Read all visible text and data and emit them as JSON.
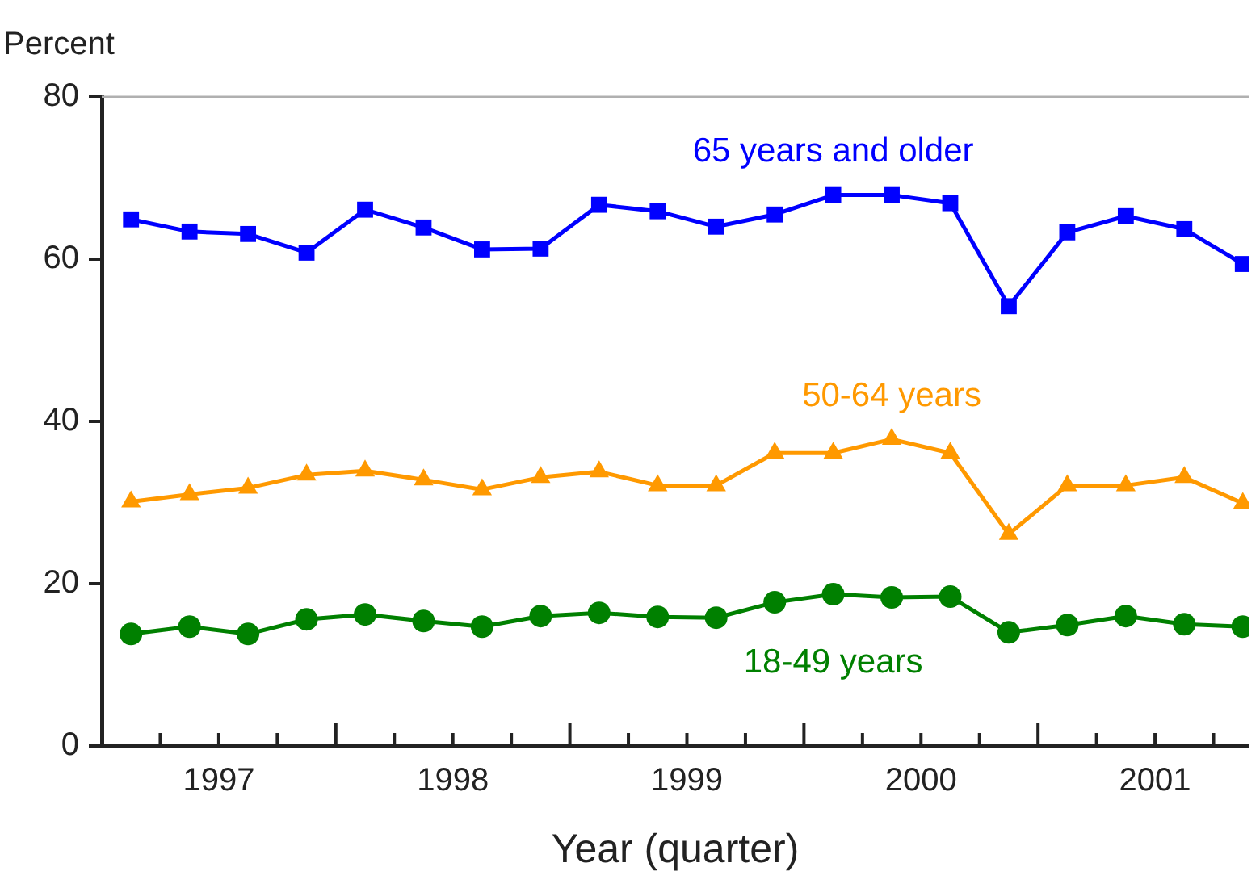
{
  "chart_data": {
    "type": "line",
    "ylabel": "Percent",
    "xlabel": "Year (quarter)",
    "x": [
      1997.125,
      1997.375,
      1997.625,
      1997.875,
      1998.125,
      1998.375,
      1998.625,
      1998.875,
      1999.125,
      1999.375,
      1999.625,
      1999.875,
      2000.125,
      2000.375,
      2000.625,
      2000.875,
      2001.125,
      2001.375,
      2001.625,
      2001.875
    ],
    "series": [
      {
        "name": "65 years and older",
        "color": "#0000ff",
        "marker": "square",
        "values": [
          64.9,
          63.4,
          63.1,
          60.8,
          66.1,
          63.9,
          61.2,
          61.3,
          66.7,
          65.9,
          64.0,
          65.5,
          67.9,
          67.9,
          66.9,
          54.2,
          63.3,
          65.3,
          63.7,
          59.4
        ]
      },
      {
        "name": "50-64 years",
        "color": "#ff9900",
        "marker": "triangle",
        "values": [
          30.1,
          31.0,
          31.8,
          33.4,
          33.9,
          32.8,
          31.6,
          33.1,
          33.8,
          32.1,
          32.1,
          36.1,
          36.1,
          37.8,
          36.1,
          26.1,
          32.1,
          32.1,
          33.1,
          29.9
        ]
      },
      {
        "name": "18-49 years",
        "color": "#008000",
        "marker": "circle",
        "values": [
          13.8,
          14.7,
          13.8,
          15.6,
          16.2,
          15.4,
          14.7,
          16.0,
          16.4,
          15.9,
          15.8,
          17.7,
          18.7,
          18.3,
          18.4,
          14.0,
          14.9,
          16.0,
          15.0,
          14.7
        ]
      }
    ],
    "xlim": [
      1997,
      2001.9
    ],
    "xticks": [
      {
        "value": 1997.25,
        "label": null
      },
      {
        "value": 1997.5,
        "label": "1997"
      },
      {
        "value": 1997.75,
        "label": null
      },
      {
        "value": 1998,
        "label": null
      },
      {
        "value": 1998.25,
        "label": null
      },
      {
        "value": 1998.5,
        "label": "1998"
      },
      {
        "value": 1998.75,
        "label": null
      },
      {
        "value": 1999,
        "label": null
      },
      {
        "value": 1999.25,
        "label": null
      },
      {
        "value": 1999.5,
        "label": "1999"
      },
      {
        "value": 1999.75,
        "label": null
      },
      {
        "value": 2000,
        "label": null
      },
      {
        "value": 2000.25,
        "label": null
      },
      {
        "value": 2000.5,
        "label": "2000"
      },
      {
        "value": 2000.75,
        "label": null
      },
      {
        "value": 2001,
        "label": null
      },
      {
        "value": 2001.25,
        "label": null
      },
      {
        "value": 2001.5,
        "label": "2001"
      },
      {
        "value": 2001.75,
        "label": null
      }
    ],
    "ylim": [
      0,
      80
    ],
    "yticks": [
      0,
      20,
      40,
      60,
      80
    ],
    "grid": false,
    "legend": false,
    "line_style": "solid"
  }
}
